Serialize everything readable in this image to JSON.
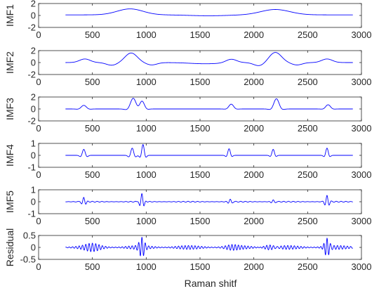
{
  "chart_data": {
    "type": "line",
    "xlabel": "Raman shitf",
    "xlim": [
      0,
      3000
    ],
    "xticks": [
      0,
      500,
      1000,
      1500,
      2000,
      2500,
      3000
    ],
    "x_range_of_data": [
      250,
      2920
    ],
    "line_color": "#0000ff",
    "subplots": [
      {
        "ylabel": "IMF1",
        "ylim": [
          -2,
          2
        ],
        "yticks": [
          -2,
          0,
          2
        ],
        "series": {
          "baseline": 0.1,
          "features": [
            {
              "center": 850,
              "amplitude": 1.0,
              "width": 170,
              "freq": 0
            },
            {
              "center": 1580,
              "amplitude": -0.15,
              "width": 250,
              "freq": 0
            },
            {
              "center": 2200,
              "amplitude": 0.9,
              "width": 190,
              "freq": 0
            }
          ]
        }
      },
      {
        "ylabel": "IMF2",
        "ylim": [
          -2,
          2
        ],
        "yticks": [
          -2,
          0,
          2
        ],
        "series": {
          "baseline": 0.0,
          "features": [
            {
              "center": 430,
              "amplitude": 0.6,
              "width": 70,
              "freq": 0
            },
            {
              "center": 680,
              "amplitude": -0.45,
              "width": 70,
              "freq": 0
            },
            {
              "center": 860,
              "amplitude": 1.6,
              "width": 80,
              "freq": 0
            },
            {
              "center": 1050,
              "amplitude": -0.4,
              "width": 70,
              "freq": 0
            },
            {
              "center": 1550,
              "amplitude": -0.2,
              "width": 200,
              "freq": 0
            },
            {
              "center": 1790,
              "amplitude": 0.6,
              "width": 70,
              "freq": 0
            },
            {
              "center": 2050,
              "amplitude": -0.55,
              "width": 70,
              "freq": 0
            },
            {
              "center": 2200,
              "amplitude": 1.7,
              "width": 80,
              "freq": 0
            },
            {
              "center": 2400,
              "amplitude": -0.4,
              "width": 70,
              "freq": 0
            },
            {
              "center": 2680,
              "amplitude": 0.6,
              "width": 70,
              "freq": 0
            }
          ]
        }
      },
      {
        "ylabel": "IMF3",
        "ylim": [
          -2,
          2
        ],
        "yticks": [
          -2,
          0,
          2
        ],
        "series": {
          "baseline": 0.0,
          "features": [
            {
              "center": 420,
              "amplitude": 0.6,
              "width": 45,
              "freq": 0.02
            },
            {
              "center": 880,
              "amplitude": 1.8,
              "width": 50,
              "freq": 0.018
            },
            {
              "center": 960,
              "amplitude": 1.4,
              "width": 40,
              "freq": 0.02
            },
            {
              "center": 1790,
              "amplitude": 0.8,
              "width": 40,
              "freq": 0.02
            },
            {
              "center": 2210,
              "amplitude": 1.7,
              "width": 45,
              "freq": 0.019
            },
            {
              "center": 2690,
              "amplitude": 0.7,
              "width": 40,
              "freq": 0.02
            }
          ]
        }
      },
      {
        "ylabel": "IMF4",
        "ylim": [
          -1,
          1
        ],
        "yticks": [
          -1,
          0,
          1
        ],
        "series": {
          "baseline": 0.0,
          "features": [
            {
              "center": 420,
              "amplitude": 0.5,
              "width": 30,
              "freq": 0.045
            },
            {
              "center": 870,
              "amplitude": 0.6,
              "width": 30,
              "freq": 0.045
            },
            {
              "center": 970,
              "amplitude": 0.9,
              "width": 25,
              "freq": 0.05
            },
            {
              "center": 1770,
              "amplitude": 0.55,
              "width": 25,
              "freq": 0.05
            },
            {
              "center": 2180,
              "amplitude": 0.5,
              "width": 25,
              "freq": 0.05
            },
            {
              "center": 2680,
              "amplitude": 0.6,
              "width": 25,
              "freq": 0.05
            }
          ]
        }
      },
      {
        "ylabel": "IMF5",
        "ylim": [
          -1,
          1
        ],
        "yticks": [
          -1,
          0,
          1
        ],
        "series": {
          "baseline": 0.0,
          "noise": 0.04,
          "noise_freq": 0.09,
          "features": [
            {
              "center": 420,
              "amplitude": 0.35,
              "width": 25,
              "freq": 0.09
            },
            {
              "center": 960,
              "amplitude": 0.7,
              "width": 25,
              "freq": 0.09
            },
            {
              "center": 1780,
              "amplitude": 0.2,
              "width": 25,
              "freq": 0.09
            },
            {
              "center": 2180,
              "amplitude": 0.15,
              "width": 25,
              "freq": 0.09
            },
            {
              "center": 2680,
              "amplitude": 0.5,
              "width": 25,
              "freq": 0.09
            }
          ]
        }
      },
      {
        "ylabel": "Residual",
        "ylim": [
          -0.5,
          0.5
        ],
        "yticks": [
          -0.5,
          0,
          0.5
        ],
        "series": {
          "baseline": 0.0,
          "noise": 0.08,
          "noise_freq": 0.13,
          "features": [
            {
              "center": 500,
              "amplitude": 0.1,
              "width": 80,
              "freq": 0.13
            },
            {
              "center": 960,
              "amplitude": 0.35,
              "width": 30,
              "freq": 0.13
            },
            {
              "center": 1800,
              "amplitude": 0.1,
              "width": 80,
              "freq": 0.13
            },
            {
              "center": 2150,
              "amplitude": 0.12,
              "width": 70,
              "freq": 0.13
            },
            {
              "center": 2680,
              "amplitude": 0.35,
              "width": 30,
              "freq": 0.13
            }
          ]
        }
      }
    ]
  }
}
